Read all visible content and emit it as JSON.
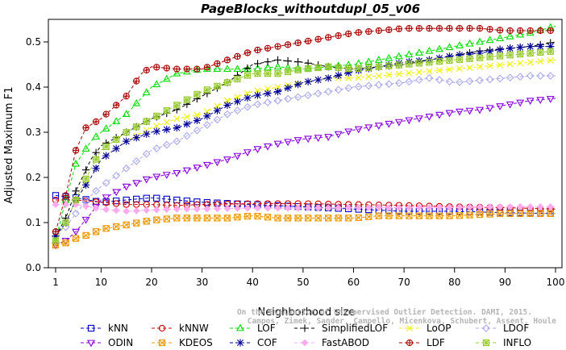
{
  "chart_data": {
    "type": "line",
    "title": "PageBlocks_withoutdupl_05_v06",
    "xlabel": "Neighborhood size",
    "ylabel": "Adjusted Maximum F1",
    "xlim": [
      1,
      100
    ],
    "ylim": [
      0,
      0.55
    ],
    "xticks": [
      1,
      10,
      20,
      30,
      40,
      50,
      60,
      70,
      80,
      90,
      100
    ],
    "yticks": [
      0.0,
      0.1,
      0.2,
      0.3,
      0.4,
      0.5
    ],
    "ytick_labels": [
      "0.0",
      "0.1",
      "0.2",
      "0.3",
      "0.4",
      "0.5"
    ],
    "grid": false,
    "legend_position": "bottom",
    "watermark": [
      "Campos, Zimek, Sander, Campello, Micenkova, Schubert, Assent, Houle",
      "On the Evaluation of Unsupervised Outlier Detection. DAMI, 2015."
    ],
    "series": [
      {
        "name": "kNN",
        "color": "#0000cc",
        "marker": "square",
        "points": [
          [
            1,
            0.16
          ],
          [
            5,
            0.155
          ],
          [
            10,
            0.145
          ],
          [
            15,
            0.15
          ],
          [
            20,
            0.155
          ],
          [
            25,
            0.15
          ],
          [
            30,
            0.145
          ],
          [
            40,
            0.14
          ],
          [
            50,
            0.135
          ],
          [
            60,
            0.13
          ],
          [
            70,
            0.125
          ],
          [
            80,
            0.125
          ],
          [
            90,
            0.122
          ],
          [
            100,
            0.12
          ]
        ]
      },
      {
        "name": "kNNW",
        "color": "#cc0000",
        "marker": "circle",
        "points": [
          [
            1,
            0.15
          ],
          [
            5,
            0.15
          ],
          [
            10,
            0.145
          ],
          [
            15,
            0.14
          ],
          [
            20,
            0.14
          ],
          [
            25,
            0.138
          ],
          [
            30,
            0.14
          ],
          [
            40,
            0.142
          ],
          [
            50,
            0.142
          ],
          [
            60,
            0.14
          ],
          [
            70,
            0.138
          ],
          [
            80,
            0.135
          ],
          [
            90,
            0.133
          ],
          [
            100,
            0.13
          ]
        ]
      },
      {
        "name": "LOF",
        "color": "#00dd00",
        "marker": "triangle-up",
        "points": [
          [
            1,
            0.06
          ],
          [
            3,
            0.15
          ],
          [
            5,
            0.23
          ],
          [
            8,
            0.28
          ],
          [
            10,
            0.3
          ],
          [
            15,
            0.34
          ],
          [
            20,
            0.4
          ],
          [
            25,
            0.43
          ],
          [
            30,
            0.44
          ],
          [
            35,
            0.44
          ],
          [
            40,
            0.44
          ],
          [
            45,
            0.445
          ],
          [
            50,
            0.44
          ],
          [
            55,
            0.445
          ],
          [
            60,
            0.45
          ],
          [
            65,
            0.46
          ],
          [
            70,
            0.47
          ],
          [
            75,
            0.48
          ],
          [
            80,
            0.49
          ],
          [
            85,
            0.5
          ],
          [
            90,
            0.51
          ],
          [
            95,
            0.52
          ],
          [
            100,
            0.535
          ]
        ]
      },
      {
        "name": "SimplifiedLOF",
        "color": "#000000",
        "marker": "plus",
        "points": [
          [
            1,
            0.07
          ],
          [
            3,
            0.11
          ],
          [
            5,
            0.17
          ],
          [
            8,
            0.24
          ],
          [
            10,
            0.27
          ],
          [
            15,
            0.3
          ],
          [
            20,
            0.33
          ],
          [
            25,
            0.35
          ],
          [
            30,
            0.38
          ],
          [
            35,
            0.41
          ],
          [
            40,
            0.45
          ],
          [
            45,
            0.46
          ],
          [
            50,
            0.455
          ],
          [
            55,
            0.445
          ],
          [
            60,
            0.44
          ],
          [
            65,
            0.445
          ],
          [
            70,
            0.45
          ],
          [
            75,
            0.46
          ],
          [
            80,
            0.47
          ],
          [
            85,
            0.48
          ],
          [
            90,
            0.485
          ],
          [
            95,
            0.49
          ],
          [
            100,
            0.5
          ]
        ]
      },
      {
        "name": "LoOP",
        "color": "#f2f200",
        "marker": "x",
        "points": [
          [
            1,
            0.07
          ],
          [
            3,
            0.1
          ],
          [
            5,
            0.15
          ],
          [
            8,
            0.2
          ],
          [
            10,
            0.24
          ],
          [
            15,
            0.28
          ],
          [
            20,
            0.31
          ],
          [
            25,
            0.33
          ],
          [
            30,
            0.34
          ],
          [
            35,
            0.37
          ],
          [
            40,
            0.39
          ],
          [
            45,
            0.4
          ],
          [
            50,
            0.41
          ],
          [
            55,
            0.42
          ],
          [
            60,
            0.42
          ],
          [
            65,
            0.425
          ],
          [
            70,
            0.43
          ],
          [
            75,
            0.435
          ],
          [
            80,
            0.44
          ],
          [
            85,
            0.445
          ],
          [
            90,
            0.45
          ],
          [
            95,
            0.455
          ],
          [
            100,
            0.46
          ]
        ]
      },
      {
        "name": "LDOF",
        "color": "#aaaaee",
        "marker": "diamond",
        "points": [
          [
            1,
            0.08
          ],
          [
            3,
            0.09
          ],
          [
            5,
            0.12
          ],
          [
            8,
            0.16
          ],
          [
            10,
            0.18
          ],
          [
            15,
            0.22
          ],
          [
            20,
            0.26
          ],
          [
            25,
            0.28
          ],
          [
            30,
            0.31
          ],
          [
            35,
            0.34
          ],
          [
            40,
            0.36
          ],
          [
            45,
            0.37
          ],
          [
            50,
            0.38
          ],
          [
            55,
            0.39
          ],
          [
            60,
            0.4
          ],
          [
            65,
            0.405
          ],
          [
            70,
            0.41
          ],
          [
            75,
            0.42
          ],
          [
            80,
            0.41
          ],
          [
            85,
            0.415
          ],
          [
            90,
            0.42
          ],
          [
            95,
            0.425
          ],
          [
            100,
            0.425
          ]
        ]
      },
      {
        "name": "ODIN",
        "color": "#8800dd",
        "marker": "triangle-down",
        "points": [
          [
            1,
            0.05
          ],
          [
            3,
            0.06
          ],
          [
            5,
            0.08
          ],
          [
            8,
            0.12
          ],
          [
            10,
            0.15
          ],
          [
            15,
            0.18
          ],
          [
            20,
            0.2
          ],
          [
            25,
            0.21
          ],
          [
            30,
            0.225
          ],
          [
            35,
            0.24
          ],
          [
            40,
            0.26
          ],
          [
            45,
            0.275
          ],
          [
            50,
            0.285
          ],
          [
            55,
            0.29
          ],
          [
            60,
            0.305
          ],
          [
            65,
            0.315
          ],
          [
            70,
            0.325
          ],
          [
            75,
            0.335
          ],
          [
            80,
            0.345
          ],
          [
            85,
            0.35
          ],
          [
            90,
            0.36
          ],
          [
            95,
            0.37
          ],
          [
            100,
            0.375
          ]
        ]
      },
      {
        "name": "KDEOS",
        "color": "#ee9900",
        "marker": "box-x",
        "points": [
          [
            1,
            0.05
          ],
          [
            3,
            0.055
          ],
          [
            5,
            0.065
          ],
          [
            8,
            0.075
          ],
          [
            10,
            0.085
          ],
          [
            15,
            0.095
          ],
          [
            20,
            0.105
          ],
          [
            25,
            0.11
          ],
          [
            30,
            0.11
          ],
          [
            35,
            0.11
          ],
          [
            40,
            0.115
          ],
          [
            45,
            0.11
          ],
          [
            50,
            0.11
          ],
          [
            55,
            0.11
          ],
          [
            60,
            0.11
          ],
          [
            65,
            0.115
          ],
          [
            70,
            0.115
          ],
          [
            75,
            0.115
          ],
          [
            80,
            0.115
          ],
          [
            85,
            0.118
          ],
          [
            90,
            0.12
          ],
          [
            95,
            0.12
          ],
          [
            100,
            0.12
          ]
        ]
      },
      {
        "name": "COF",
        "color": "#000099",
        "marker": "asterisk",
        "points": [
          [
            1,
            0.07
          ],
          [
            3,
            0.1
          ],
          [
            5,
            0.15
          ],
          [
            8,
            0.2
          ],
          [
            10,
            0.24
          ],
          [
            15,
            0.28
          ],
          [
            20,
            0.3
          ],
          [
            25,
            0.31
          ],
          [
            30,
            0.33
          ],
          [
            35,
            0.36
          ],
          [
            40,
            0.38
          ],
          [
            45,
            0.39
          ],
          [
            50,
            0.41
          ],
          [
            55,
            0.42
          ],
          [
            60,
            0.435
          ],
          [
            65,
            0.445
          ],
          [
            70,
            0.455
          ],
          [
            75,
            0.46
          ],
          [
            80,
            0.47
          ],
          [
            85,
            0.475
          ],
          [
            90,
            0.485
          ],
          [
            95,
            0.49
          ],
          [
            100,
            0.49
          ]
        ]
      },
      {
        "name": "FastABOD",
        "color": "#ffaaee",
        "marker": "diamond-filled",
        "points": [
          [
            1,
            0.14
          ],
          [
            5,
            0.14
          ],
          [
            10,
            0.13
          ],
          [
            15,
            0.125
          ],
          [
            20,
            0.128
          ],
          [
            25,
            0.13
          ],
          [
            30,
            0.13
          ],
          [
            40,
            0.132
          ],
          [
            50,
            0.132
          ],
          [
            60,
            0.133
          ],
          [
            70,
            0.133
          ],
          [
            80,
            0.134
          ],
          [
            90,
            0.135
          ],
          [
            100,
            0.135
          ]
        ]
      },
      {
        "name": "LDF",
        "color": "#aa0000",
        "marker": "circle-plus",
        "points": [
          [
            1,
            0.08
          ],
          [
            3,
            0.16
          ],
          [
            5,
            0.26
          ],
          [
            7,
            0.31
          ],
          [
            10,
            0.33
          ],
          [
            15,
            0.38
          ],
          [
            18,
            0.43
          ],
          [
            20,
            0.445
          ],
          [
            25,
            0.44
          ],
          [
            30,
            0.44
          ],
          [
            35,
            0.46
          ],
          [
            40,
            0.48
          ],
          [
            45,
            0.49
          ],
          [
            50,
            0.5
          ],
          [
            55,
            0.51
          ],
          [
            60,
            0.52
          ],
          [
            65,
            0.525
          ],
          [
            70,
            0.53
          ],
          [
            75,
            0.53
          ],
          [
            80,
            0.53
          ],
          [
            85,
            0.53
          ],
          [
            90,
            0.525
          ],
          [
            95,
            0.525
          ],
          [
            100,
            0.525
          ]
        ]
      },
      {
        "name": "INFLO",
        "color": "#99cc33",
        "marker": "box-star",
        "points": [
          [
            1,
            0.06
          ],
          [
            3,
            0.1
          ],
          [
            5,
            0.15
          ],
          [
            8,
            0.22
          ],
          [
            10,
            0.26
          ],
          [
            15,
            0.3
          ],
          [
            20,
            0.33
          ],
          [
            25,
            0.36
          ],
          [
            30,
            0.39
          ],
          [
            35,
            0.41
          ],
          [
            40,
            0.43
          ],
          [
            45,
            0.43
          ],
          [
            50,
            0.44
          ],
          [
            55,
            0.445
          ],
          [
            60,
            0.44
          ],
          [
            65,
            0.445
          ],
          [
            70,
            0.45
          ],
          [
            75,
            0.455
          ],
          [
            80,
            0.46
          ],
          [
            85,
            0.465
          ],
          [
            90,
            0.47
          ],
          [
            95,
            0.475
          ],
          [
            100,
            0.48
          ]
        ]
      }
    ]
  }
}
